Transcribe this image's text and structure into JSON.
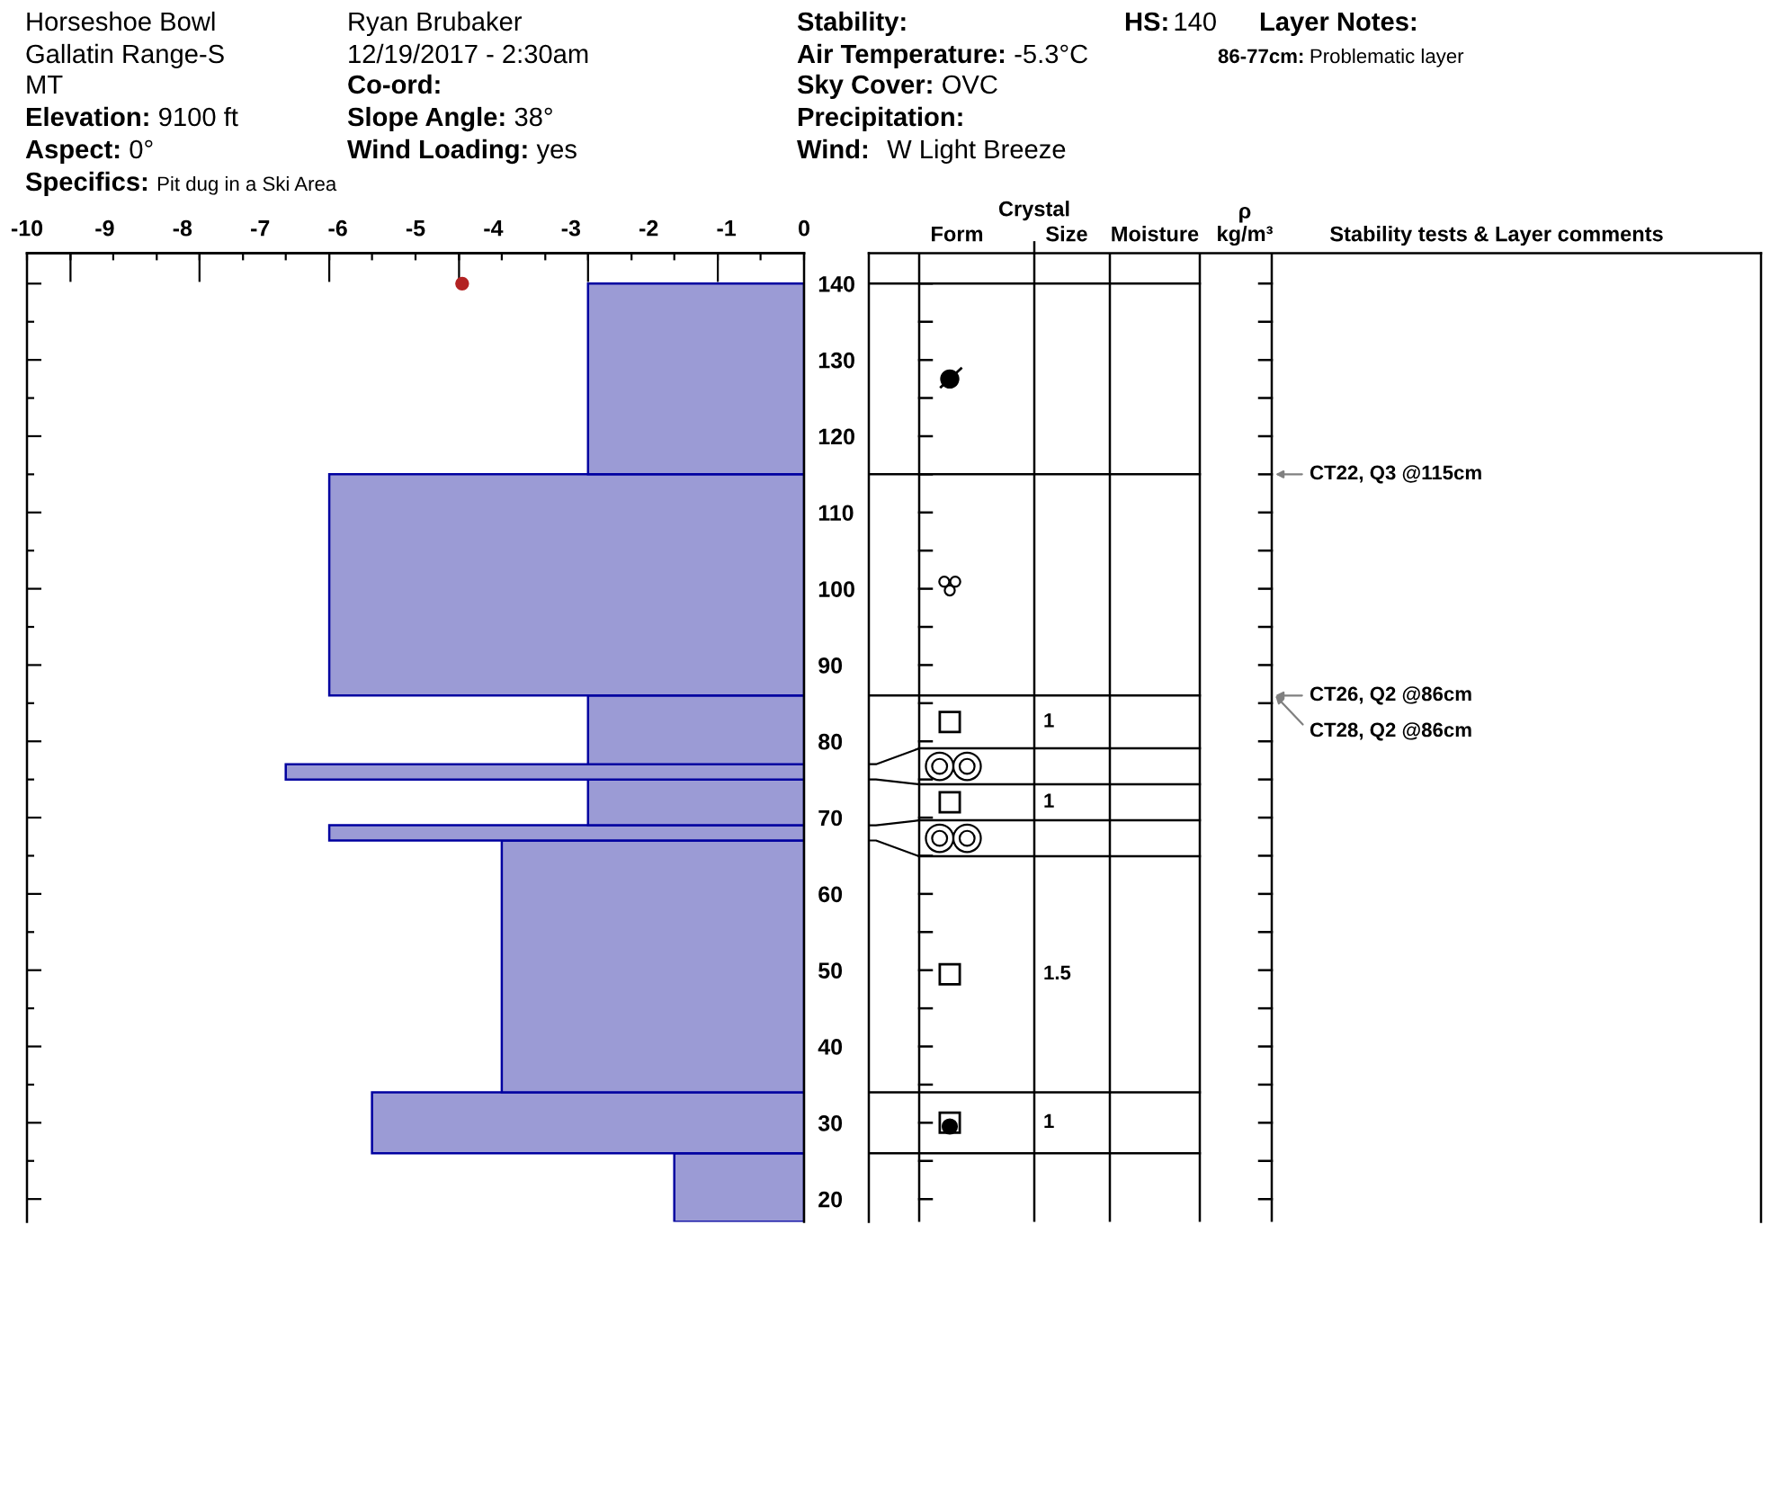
{
  "chart_data": [
    {
      "type": "other",
      "annotations": [
        "Horseshoe Bowl",
        "Gallatin Range-S",
        "MT",
        "Elevation:",
        "9100 ft",
        "Aspect:",
        "0°",
        "Specifics:",
        "Pit dug in a Ski Area",
        "Ryan Brubaker",
        "12/19/2017 - 2:30am",
        "Co-ord:",
        "Slope Angle:",
        "38°",
        "Wind Loading:",
        "yes",
        "Stability:",
        "Air Temperature:",
        "-5.3°C",
        "Sky Cover:",
        "OVC",
        "Precipitation:",
        "Wind:",
        "W Light Breeze",
        "HS:",
        "140",
        "Layer Notes:",
        "86-77cm:",
        "Problematic layer"
      ]
    },
    {
      "type": "histogram",
      "orientation": "horizontal",
      "bins": [
        17,
        26,
        34,
        67,
        69,
        75,
        77,
        86,
        115,
        140
      ],
      "series": [
        {
          "type": "histogram",
          "color": "#9b9bd5",
          "values": [
            -1.67,
            -5.56,
            -3.89,
            -6.11,
            -2.78,
            -6.67,
            -2.78,
            -6.11,
            -2.78
          ]
        },
        {
          "type": "scatter",
          "color": "#b22222",
          "marker": "circle",
          "x": [
            140
          ],
          "values": [
            -4.4
          ]
        }
      ],
      "xlim": [
        -10,
        0
      ],
      "xticks": [
        -10,
        -9,
        -8,
        -7,
        -6,
        -5,
        -4,
        -3,
        -2,
        -1,
        0,
        {
          "value": -10,
          "label": null
        },
        {
          "value": -9.44,
          "label": null
        },
        {
          "value": -8.89,
          "label": null
        },
        {
          "value": -8.33,
          "label": null
        },
        {
          "value": -7.78,
          "label": null
        },
        {
          "value": -7.22,
          "label": null
        },
        {
          "value": -6.67,
          "label": null
        },
        {
          "value": -6.11,
          "label": null
        },
        {
          "value": -5.56,
          "label": null
        },
        {
          "value": -5,
          "label": null
        },
        {
          "value": -4.44,
          "label": null
        },
        {
          "value": -3.89,
          "label": null
        },
        {
          "value": -3.33,
          "label": null
        },
        {
          "value": -2.78,
          "label": null
        },
        {
          "value": -2.22,
          "label": null
        },
        {
          "value": -1.67,
          "label": null
        },
        {
          "value": -1.11,
          "label": null
        },
        {
          "value": -0.56,
          "label": null
        },
        {
          "value": 0,
          "label": null
        }
      ],
      "ylim": [
        17,
        144
      ],
      "yticks": [
        20,
        {
          "value": 25,
          "label": null
        },
        30,
        {
          "value": 35,
          "label": null
        },
        40,
        {
          "value": 45,
          "label": null
        },
        50,
        {
          "value": 55,
          "label": null
        },
        60,
        {
          "value": 65,
          "label": null
        },
        70,
        {
          "value": 75,
          "label": null
        },
        80,
        {
          "value": 85,
          "label": null
        },
        90,
        {
          "value": 95,
          "label": null
        },
        100,
        {
          "value": 105,
          "label": null
        },
        110,
        {
          "value": 115,
          "label": null
        },
        120,
        {
          "value": 125,
          "label": null
        },
        130,
        {
          "value": 135,
          "label": null
        },
        140
      ],
      "annotations": [
        "Crystal",
        "Form",
        "Size",
        "Moisture",
        "ρ\nkg/m³",
        "Stability tests & Layer comments",
        "1",
        "1",
        "1.5",
        "1",
        "CT22, Q3 @115cm",
        "CT26, Q2 @86cm",
        "CT28, Q2 @86cm"
      ]
    }
  ]
}
